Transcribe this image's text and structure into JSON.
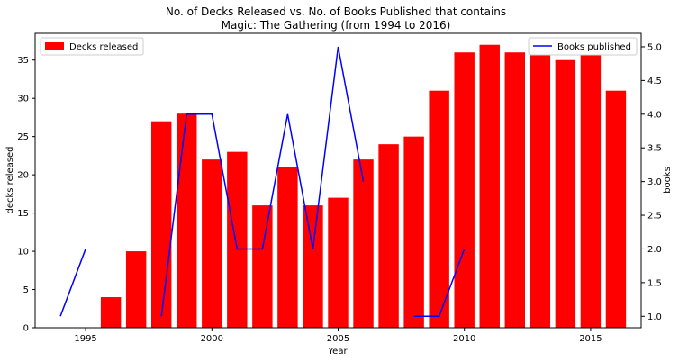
{
  "chart_data": {
    "type": "bar",
    "title_line1": "No. of Decks Released vs. No. of Books Published that contains",
    "title_line2": "Magic: The Gathering (from 1994 to 2016)",
    "xlabel": "Year",
    "ylabel_left": "decks released",
    "ylabel_right": "books",
    "xlim": [
      1993,
      2017
    ],
    "ylim_left": [
      0,
      38.5
    ],
    "ylim_right": [
      0.83,
      5.2
    ],
    "x_ticks": [
      1995,
      2000,
      2005,
      2010,
      2015
    ],
    "y_left_ticks": [
      0,
      5,
      10,
      15,
      20,
      25,
      30,
      35
    ],
    "y_right_ticks": [
      1.0,
      1.5,
      2.0,
      2.5,
      3.0,
      3.5,
      4.0,
      4.5,
      5.0
    ],
    "grid": false,
    "colors": {
      "bars": "#ff0000",
      "line": "#0000ff"
    },
    "series": [
      {
        "name": "Decks released",
        "kind": "bar",
        "axis": "left",
        "legend_position": "upper-left",
        "x": [
          1996,
          1997,
          1998,
          1999,
          2000,
          2001,
          2002,
          2003,
          2004,
          2005,
          2006,
          2007,
          2008,
          2009,
          2010,
          2011,
          2012,
          2013,
          2014,
          2015,
          2016
        ],
        "values": [
          4,
          10,
          27,
          28,
          22,
          23,
          16,
          21,
          16,
          17,
          22,
          24,
          25,
          31,
          36,
          37,
          36,
          36,
          35,
          36,
          31
        ]
      },
      {
        "name": "Books published",
        "kind": "line",
        "axis": "right",
        "legend_position": "upper-right",
        "segments": [
          {
            "x": [
              1994,
              1995
            ],
            "values": [
              1,
              2
            ]
          },
          {
            "x": [
              1998,
              1999,
              2000,
              2001,
              2002,
              2003,
              2004,
              2005,
              2006
            ],
            "values": [
              1,
              4,
              4,
              2,
              2,
              4,
              2,
              5,
              3
            ]
          },
          {
            "x": [
              2008,
              2009,
              2010
            ],
            "values": [
              1,
              1,
              2
            ]
          }
        ]
      }
    ]
  }
}
